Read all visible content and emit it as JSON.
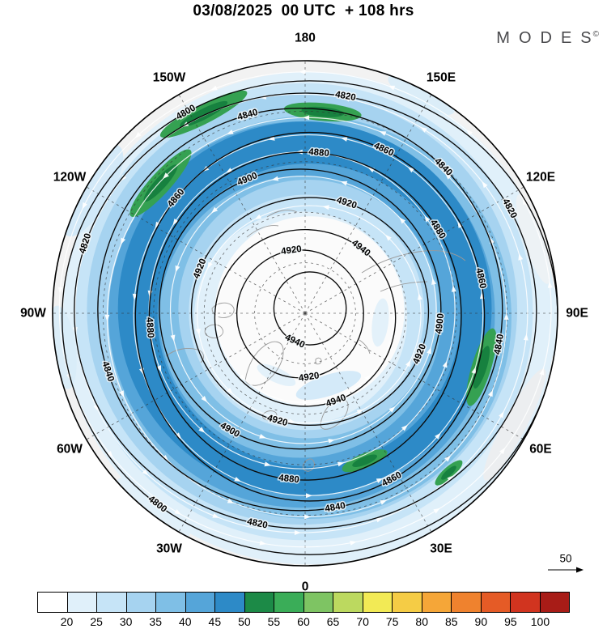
{
  "title": "03/08/2025  00 UTC  + 108 hrs",
  "logo": {
    "text": "MODES",
    "sup": "©"
  },
  "map": {
    "longitude_labels": [
      {
        "label": "180",
        "angle": 0
      },
      {
        "label": "150E",
        "angle": 30
      },
      {
        "label": "120E",
        "angle": 60
      },
      {
        "label": "90E",
        "angle": 90
      },
      {
        "label": "60E",
        "angle": 120
      },
      {
        "label": "30E",
        "angle": 150
      },
      {
        "label": "0",
        "angle": 180
      },
      {
        "label": "30W",
        "angle": 210
      },
      {
        "label": "60W",
        "angle": 240
      },
      {
        "label": "90W",
        "angle": 270
      },
      {
        "label": "120W",
        "angle": 300
      },
      {
        "label": "150W",
        "angle": 330
      }
    ],
    "contours": [
      {
        "value": "4800",
        "r": 0.965,
        "angles": [
          330,
          218
        ]
      },
      {
        "value": "4820",
        "r": 0.885,
        "angles": [
          10,
          62,
          192,
          288
        ]
      },
      {
        "value": "4840",
        "r": 0.8,
        "angles": [
          345,
          45,
          100,
          170,
          252
        ]
      },
      {
        "value": "4860",
        "r": 0.715,
        "angles": [
          25,
          78,
          152,
          310
        ]
      },
      {
        "value": "4880",
        "r": 0.63,
        "angles": [
          5,
          58,
          186,
          266
        ]
      },
      {
        "value": "4900",
        "r": 0.545,
        "angles": [
          338,
          96,
          210
        ]
      },
      {
        "value": "4920",
        "r": 0.455,
        "angles": [
          18,
          112,
          196,
          292
        ]
      },
      {
        "value": "4940",
        "r": 0.36,
        "angles": [
          38,
          160
        ]
      },
      {
        "value": "4920",
        "r": 0.26,
        "angles": [
          352,
          172
        ]
      },
      {
        "value": "4940",
        "r": 0.145,
        "angles": [
          205
        ]
      }
    ],
    "shading_bands": [
      [
        0.975,
        "#e0f0fa"
      ],
      [
        0.905,
        "#c6e4f7"
      ],
      [
        0.852,
        "#a6d3f0"
      ],
      [
        0.798,
        "#7fbfe6"
      ],
      [
        0.765,
        "#55a5d9"
      ],
      [
        0.74,
        "#2d8ac7"
      ],
      [
        0.6,
        "#55a5d9"
      ],
      [
        0.558,
        "#7fbfe6"
      ],
      [
        0.512,
        "#a6d3f0"
      ],
      [
        0.466,
        "#c6e4f7"
      ],
      [
        0.422,
        "#e0f0fa"
      ],
      [
        0.375,
        "#fbfbfb"
      ]
    ],
    "green_patches": [
      {
        "angle": 333,
        "r": 0.885,
        "len": 60,
        "wid": 12
      },
      {
        "angle": 312,
        "r": 0.77,
        "len": 55,
        "wid": 13
      },
      {
        "angle": 5,
        "r": 0.8,
        "len": 48,
        "wid": 11
      },
      {
        "angle": 107,
        "r": 0.73,
        "len": 50,
        "wid": 12
      },
      {
        "angle": 158,
        "r": 0.63,
        "len": 30,
        "wid": 9
      },
      {
        "angle": 138,
        "r": 0.85,
        "len": 22,
        "wid": 7
      }
    ],
    "graticule_circles": [
      0.2,
      0.4,
      0.6,
      0.8
    ],
    "meridian_step": 30,
    "streamline_rings": [
      [
        0.345,
        8
      ],
      [
        0.435,
        10
      ],
      [
        0.525,
        12
      ],
      [
        0.615,
        13
      ],
      [
        0.705,
        15
      ],
      [
        0.795,
        16
      ],
      [
        0.885,
        17
      ],
      [
        0.955,
        17
      ]
    ],
    "wind_ref": "50"
  },
  "colorbar": {
    "labels": [
      "20",
      "25",
      "30",
      "35",
      "40",
      "45",
      "50",
      "55",
      "60",
      "65",
      "70",
      "75",
      "80",
      "85",
      "90",
      "95",
      "100"
    ],
    "colors": [
      "#ffffff",
      "#e0f0fa",
      "#c6e4f7",
      "#a6d3f0",
      "#7fbfe6",
      "#55a5d9",
      "#2d8ac7",
      "#1c8a47",
      "#3aad58",
      "#7ec463",
      "#bcd95f",
      "#f2ea55",
      "#f5cc45",
      "#f5a638",
      "#ef822e",
      "#e55b26",
      "#d1341f",
      "#a81c17"
    ]
  },
  "chart_data": {
    "type": "heatmap",
    "subtype": "north polar stereographic contour map with shaded field, streamlines and colorbar",
    "title": "03/08/2025  00 UTC  + 108 hrs",
    "valid_label": "03/08/2025 00 UTC",
    "forecast_lead": "+ 108 hrs",
    "branding": "MODES©",
    "longitude_ring_labels": [
      "180",
      "150E",
      "120E",
      "90E",
      "60E",
      "30E",
      "0",
      "30W",
      "60W",
      "90W",
      "120W",
      "150W"
    ],
    "contour_levels": [
      4800,
      4820,
      4840,
      4860,
      4880,
      4900,
      4920,
      4940
    ],
    "contour_interval": 20,
    "contour_low_value_location": "outer edge of map (4800)",
    "contour_high_value_location": "near pole (4940)",
    "colorbar_values": [
      20,
      25,
      30,
      35,
      40,
      45,
      50,
      55,
      60,
      65,
      70,
      75,
      80,
      85,
      90,
      95,
      100
    ],
    "colorbar_colors": [
      "#ffffff",
      "#e0f0fa",
      "#c6e4f7",
      "#a6d3f0",
      "#7fbfe6",
      "#55a5d9",
      "#2d8ac7",
      "#1c8a47",
      "#3aad58",
      "#7ec463",
      "#bcd95f",
      "#f2ea55",
      "#f5cc45",
      "#f5a638",
      "#ef822e",
      "#e55b26",
      "#d1341f",
      "#a81c17"
    ],
    "wind_reference_vector": 50,
    "flow_direction": "counterclockwise circumpolar white streamline arrows",
    "shading_description": "annular blue band of high values between ~40N-70N with green maxima streaks NW of pole, N, E and S sectors; near-white at pole and map edge"
  }
}
